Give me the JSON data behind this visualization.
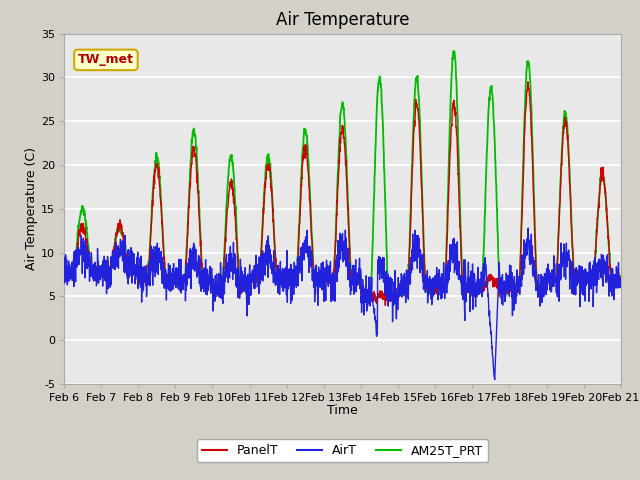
{
  "title": "Air Temperature",
  "xlabel": "Time",
  "ylabel": "Air Temperature (C)",
  "ylim": [
    -5,
    35
  ],
  "yticks": [
    -5,
    0,
    5,
    10,
    15,
    20,
    25,
    30,
    35
  ],
  "xtick_labels": [
    "Feb 6",
    "Feb 7",
    "Feb 8",
    "Feb 9",
    "Feb 10",
    "Feb 11",
    "Feb 12",
    "Feb 13",
    "Feb 14",
    "Feb 15",
    "Feb 16",
    "Feb 17",
    "Feb 18",
    "Feb 19",
    "Feb 20",
    "Feb 21"
  ],
  "color_panel": "#cc0000",
  "color_air": "#2222dd",
  "color_am25": "#00bb00",
  "lw_panel": 1.0,
  "lw_air": 1.0,
  "lw_am25": 1.3,
  "fig_bg": "#d4d0c8",
  "plot_bg": "#e8e8e8",
  "annotation_text": "TW_met",
  "annotation_fg": "#aa0000",
  "annotation_bg": "#ffffcc",
  "annotation_edge": "#ccaa00",
  "title_fs": 12,
  "label_fs": 9,
  "tick_fs": 8,
  "legend_fs": 9,
  "n_days": 15,
  "panel_peaks": [
    13,
    13,
    20,
    22,
    18,
    20,
    22,
    24,
    5,
    27,
    27,
    7,
    29,
    25,
    19
  ],
  "am25_peaks": [
    15,
    13,
    21,
    24,
    21,
    21,
    24,
    27,
    30,
    30,
    33,
    29,
    32,
    26,
    19
  ],
  "air_max_peaks": [
    12,
    12,
    12,
    11,
    11,
    12,
    13,
    14,
    11,
    15,
    13,
    15,
    15,
    11,
    10
  ],
  "night_base": [
    8,
    8,
    7,
    7,
    6,
    7,
    7,
    7,
    5,
    6,
    6,
    6,
    6,
    7,
    7
  ],
  "air_dip_day": 11
}
